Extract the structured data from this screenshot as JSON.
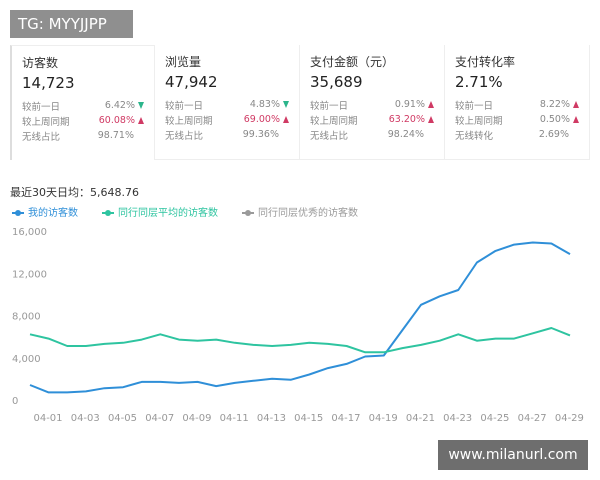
{
  "watermark_top": "TG: MYYJJPP",
  "watermark_bottom": "www.milanurl.com",
  "cards": [
    {
      "title": "访客数",
      "value": "14,723",
      "rows": [
        {
          "label": "较前一日",
          "value": "6.42%",
          "trend": "down",
          "highlight": false
        },
        {
          "label": "较上周同期",
          "value": "60.08%",
          "trend": "up",
          "highlight": true
        },
        {
          "label": "无线占比",
          "value": "98.71%",
          "trend": null,
          "highlight": false
        }
      ]
    },
    {
      "title": "浏览量",
      "value": "47,942",
      "rows": [
        {
          "label": "较前一日",
          "value": "4.83%",
          "trend": "down",
          "highlight": false
        },
        {
          "label": "较上周同期",
          "value": "69.00%",
          "trend": "up",
          "highlight": true
        },
        {
          "label": "无线占比",
          "value": "99.36%",
          "trend": null,
          "highlight": false
        }
      ]
    },
    {
      "title": "支付金额（元）",
      "value": "35,689",
      "rows": [
        {
          "label": "较前一日",
          "value": "0.91%",
          "trend": "up",
          "highlight": false
        },
        {
          "label": "较上周同期",
          "value": "63.20%",
          "trend": "up",
          "highlight": true
        },
        {
          "label": "无线占比",
          "value": "98.24%",
          "trend": null,
          "highlight": false
        }
      ]
    },
    {
      "title": "支付转化率",
      "value": "2.71%",
      "rows": [
        {
          "label": "较前一日",
          "value": "8.22%",
          "trend": "up",
          "highlight": false
        },
        {
          "label": "较上周同期",
          "value": "0.50%",
          "trend": "up",
          "highlight": false
        },
        {
          "label": "无线转化",
          "value": "2.69%",
          "trend": null,
          "highlight": false
        }
      ]
    }
  ],
  "chart_data": {
    "type": "line",
    "subtitle": "最近30天日均：5,648.76",
    "categories": [
      "04-01",
      null,
      "04-03",
      null,
      "04-05",
      null,
      "04-07",
      null,
      "04-09",
      null,
      "04-11",
      null,
      "04-13",
      null,
      "04-15",
      null,
      "04-17",
      null,
      "04-19",
      null,
      "04-21",
      null,
      "04-23",
      null,
      "04-25",
      null,
      "04-27",
      null,
      "04-29",
      null
    ],
    "series": [
      {
        "name": "我的访客数",
        "color": "#2f8fd8",
        "values": [
          1700,
          1000,
          1000,
          1100,
          1400,
          1500,
          2000,
          2000,
          1900,
          2000,
          1600,
          1900,
          2100,
          2300,
          2200,
          2700,
          3300,
          3700,
          4400,
          4500,
          6900,
          9300,
          10100,
          10700,
          13300,
          14400,
          15000,
          15200,
          15100,
          14100
        ]
      },
      {
        "name": "同行同层平均的访客数",
        "color": "#2ec4a0",
        "values": [
          6500,
          6100,
          5400,
          5400,
          5600,
          5700,
          6000,
          6500,
          6000,
          5900,
          6000,
          5700,
          5500,
          5400,
          5500,
          5700,
          5600,
          5400,
          4800,
          4800,
          5200,
          5500,
          5900,
          6500,
          5900,
          6100,
          6100,
          6600,
          7100,
          6400
        ]
      },
      {
        "name": "同行同层优秀的访客数",
        "color": "#9a9a9a",
        "values": [
          null,
          null,
          null,
          null,
          null,
          null,
          null,
          null,
          null,
          null,
          null,
          null,
          null,
          null,
          null,
          null,
          null,
          null,
          null,
          null,
          null,
          null,
          null,
          null,
          null,
          null,
          null,
          null,
          null,
          null
        ]
      }
    ],
    "ylim": [
      0,
      16000
    ],
    "yticks": [
      0,
      {
        "value": 4000,
        "label": "4,000"
      },
      {
        "value": 8000,
        "label": "8,000"
      },
      {
        "value": 12000,
        "label": "12,000"
      },
      {
        "value": 16000,
        "label": "16,000"
      }
    ],
    "grid": false
  }
}
